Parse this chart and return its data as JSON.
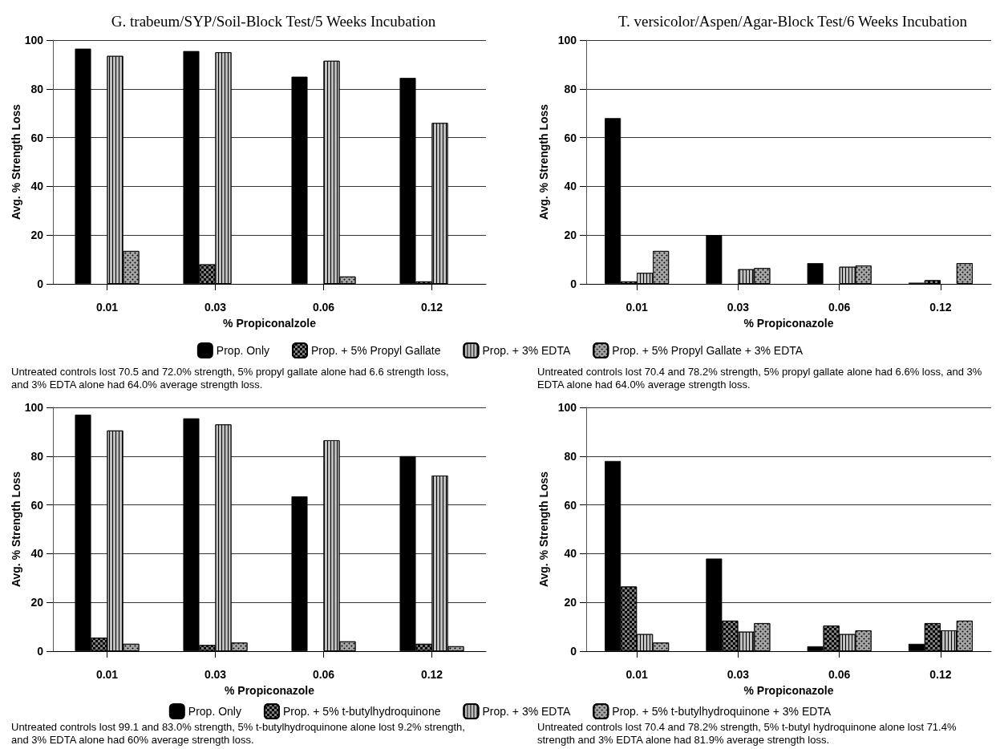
{
  "chart_data": [
    {
      "type": "bar",
      "title": "G. trabeum/SYP/Soil-Block Test/5 Weeks Incubation",
      "xlabel": "% Propiconalzole",
      "ylabel": "Avg. % Strength Loss",
      "categories": [
        "0.01",
        "0.03",
        "0.06",
        "0.12"
      ],
      "ylim": [
        0,
        100
      ],
      "yticks": [
        0,
        20,
        40,
        60,
        80,
        100
      ],
      "grid": "y",
      "legend": "bottom",
      "series": [
        {
          "name": "Prop. Only",
          "color": "#000000",
          "values": [
            96.5,
            95.5,
            85,
            84.5
          ]
        },
        {
          "name": "Prop. + 5% Propyl Gallate",
          "color": "#7f7f7f",
          "values": [
            0,
            8,
            0,
            1
          ]
        },
        {
          "name": "Prop. + 3% EDTA",
          "color": "#bfbfbf",
          "values": [
            93.5,
            95,
            91.5,
            66
          ]
        },
        {
          "name": "Prop. + 5% Propyl Gallate + 3% EDTA",
          "color": "#a5a5a5",
          "values": [
            13.5,
            0,
            3,
            0
          ]
        }
      ],
      "annotations": [
        "Untreated controls lost 70.5 and 72.0% strength, 5% propyl gallate alone had 6.6 strength loss, and 3% EDTA alone had 64.0% average strength loss."
      ]
    },
    {
      "type": "bar",
      "title": "T. versicolor/Aspen/Agar-Block Test/6 Weeks Incubation",
      "xlabel": "% Propiconazole",
      "ylabel": "Avg. % Strength Loss",
      "categories": [
        "0.01",
        "0.03",
        "0.06",
        "0.12"
      ],
      "ylim": [
        0,
        100
      ],
      "yticks": [
        0,
        20,
        40,
        60,
        80,
        100
      ],
      "grid": "y",
      "series": [
        {
          "color": "#000000",
          "values": [
            68,
            20,
            8.5,
            0.5
          ]
        },
        {
          "color": "#7f7f7f",
          "values": [
            1,
            0,
            0,
            1.5
          ]
        },
        {
          "color": "#bfbfbf",
          "values": [
            4.5,
            6,
            7,
            0
          ]
        },
        {
          "color": "#a5a5a5",
          "values": [
            13.5,
            6.5,
            7.5,
            8.5
          ]
        }
      ],
      "annotations": [
        "Untreated controls lost 70.4 and 78.2% strength, 5% propyl gallate alone had 6.6% loss, and 3% EDTA alone had 64.0% average strength loss."
      ]
    },
    {
      "type": "bar",
      "xlabel": "% Propiconazole",
      "ylabel": "Avg. % Strength Loss",
      "categories": [
        "0.01",
        "0.03",
        "0.06",
        "0.12"
      ],
      "ylim": [
        0,
        100
      ],
      "yticks": [
        0,
        20,
        40,
        60,
        80,
        100
      ],
      "grid": "y",
      "legend": "bottom",
      "series": [
        {
          "name": "Prop. Only",
          "color": "#000000",
          "values": [
            97,
            95.5,
            63.5,
            80
          ]
        },
        {
          "name": "Prop. + 5% t-butylhydroquinone",
          "color": "#7f7f7f",
          "values": [
            5.5,
            2.5,
            0,
            3
          ]
        },
        {
          "name": "Prop. + 3% EDTA",
          "color": "#bfbfbf",
          "values": [
            90.5,
            93,
            86.5,
            72
          ]
        },
        {
          "name": "Prop. + 5% t-butylhydroquinone + 3% EDTA",
          "color": "#a5a5a5",
          "values": [
            3,
            3.5,
            4,
            2
          ]
        }
      ],
      "annotations": [
        "Untreated controls lost 99.1 and 83.0% strength, 5% t-butylhydroquinone alone lost 9.2% strength, and 3% EDTA alone had 60% average strength loss."
      ]
    },
    {
      "type": "bar",
      "xlabel": "% Propiconazole",
      "ylabel": "Avg. % Strength Loss",
      "categories": [
        "0.01",
        "0.03",
        "0.06",
        "0.12"
      ],
      "ylim": [
        0,
        100
      ],
      "yticks": [
        0,
        20,
        40,
        60,
        80,
        100
      ],
      "grid": "y",
      "series": [
        {
          "color": "#000000",
          "values": [
            78,
            38,
            2,
            3
          ]
        },
        {
          "color": "#7f7f7f",
          "values": [
            26.5,
            12.5,
            10.5,
            11.5
          ]
        },
        {
          "color": "#bfbfbf",
          "values": [
            7,
            8,
            7,
            8.5
          ]
        },
        {
          "color": "#a5a5a5",
          "values": [
            3.5,
            11.5,
            8.5,
            12.5
          ]
        }
      ],
      "annotations": [
        "Untreated controls lost 70.4 and 78.2% strength, 5% t-butyl hydroquinone alone lost 71.4% strength and 3% EDTA alone had 81.9% average strength loss."
      ]
    }
  ]
}
